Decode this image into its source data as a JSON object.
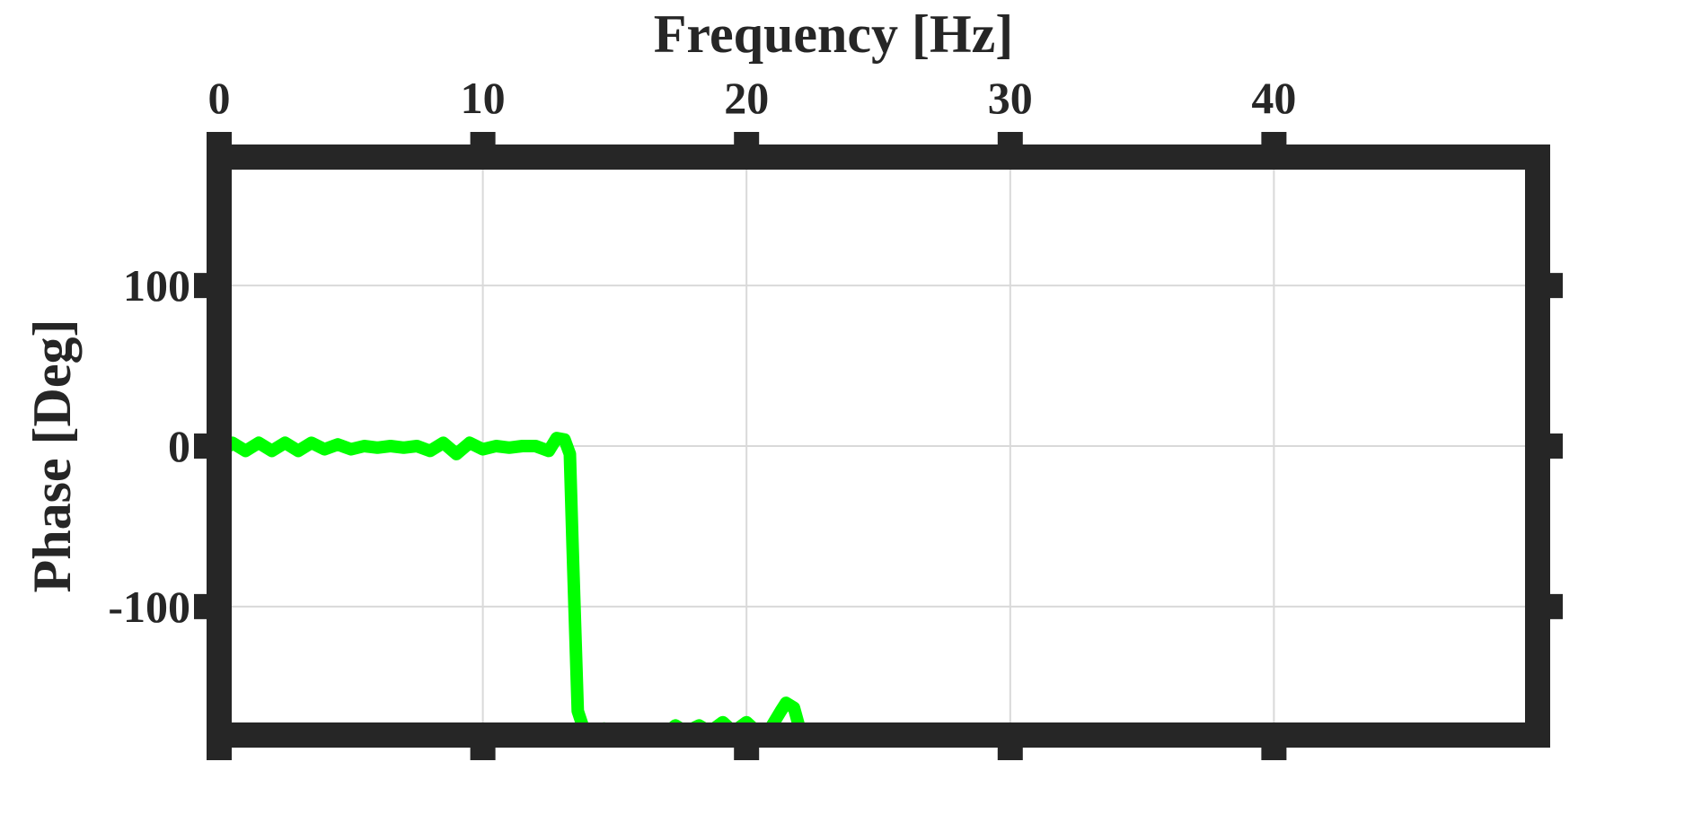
{
  "chart_data": {
    "type": "line",
    "title": "",
    "xlabel": "Frequency [Hz]",
    "ylabel": "Phase [Deg]",
    "xlim": [
      0,
      50
    ],
    "ylim": [
      -180,
      180
    ],
    "x_axis_position": "top",
    "x_ticks": [
      0,
      10,
      20,
      30,
      40
    ],
    "x_tick_labels": [
      "0",
      "10",
      "20",
      "30",
      "40"
    ],
    "y_ticks": [
      -100,
      0,
      100
    ],
    "y_tick_labels": [
      "-100",
      "0",
      "100"
    ],
    "grid": true,
    "colors": {
      "series": "#00ff00",
      "axes": "#262626",
      "grid": "#d9d9d9"
    },
    "series": [
      {
        "values": [
          [
            0,
            -5
          ],
          [
            0.5,
            2
          ],
          [
            1,
            -3
          ],
          [
            1.5,
            2
          ],
          [
            2,
            -3
          ],
          [
            2.5,
            2
          ],
          [
            3,
            -3
          ],
          [
            3.5,
            2
          ],
          [
            4,
            -2
          ],
          [
            4.5,
            1
          ],
          [
            5,
            -2
          ],
          [
            5.5,
            0
          ],
          [
            6,
            -1
          ],
          [
            6.5,
            0
          ],
          [
            7,
            -1
          ],
          [
            7.5,
            0
          ],
          [
            8,
            -3
          ],
          [
            8.5,
            2
          ],
          [
            9,
            -5
          ],
          [
            9.5,
            2
          ],
          [
            10,
            -2
          ],
          [
            10.5,
            0
          ],
          [
            11,
            -1
          ],
          [
            11.5,
            0
          ],
          [
            12,
            0
          ],
          [
            12.5,
            -3
          ],
          [
            12.8,
            5
          ],
          [
            13.1,
            4
          ],
          [
            13.3,
            -5
          ],
          [
            13.4,
            -60
          ],
          [
            13.6,
            -165
          ],
          [
            13.8,
            -175
          ],
          [
            14.2,
            -180
          ],
          [
            14.6,
            -176
          ],
          [
            15,
            -178
          ],
          [
            15.3,
            -178
          ]
        ]
      },
      {
        "values": [
          [
            16.9,
            -180
          ],
          [
            17.3,
            -174
          ],
          [
            17.7,
            -178
          ],
          [
            18.2,
            -174
          ],
          [
            18.6,
            -178
          ],
          [
            19.1,
            -172
          ],
          [
            19.5,
            -178
          ],
          [
            20,
            -172
          ],
          [
            20.4,
            -178
          ],
          [
            20.9,
            -176
          ],
          [
            21.3,
            -165
          ],
          [
            21.5,
            -160
          ],
          [
            21.8,
            -163
          ],
          [
            22,
            -175
          ]
        ]
      }
    ]
  }
}
